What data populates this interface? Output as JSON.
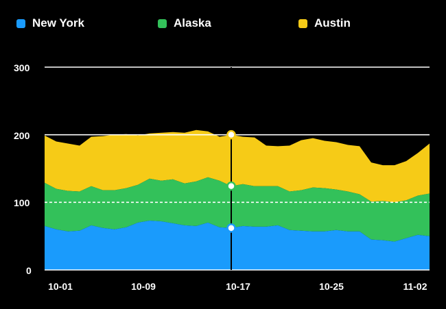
{
  "chart_data": {
    "type": "area",
    "stacked": true,
    "x_tick_labels": [
      "10-01",
      "10-09",
      "10-17",
      "10-25",
      "11-02"
    ],
    "y_tick_labels": [
      "0",
      "100",
      "200",
      "300"
    ],
    "ylim": [
      0,
      300
    ],
    "grid": true,
    "legend_position": "top",
    "x": [
      "10-01",
      "10-02",
      "10-03",
      "10-04",
      "10-05",
      "10-06",
      "10-07",
      "10-08",
      "10-09",
      "10-10",
      "10-11",
      "10-12",
      "10-13",
      "10-14",
      "10-15",
      "10-16",
      "10-17",
      "10-18",
      "10-19",
      "10-20",
      "10-21",
      "10-22",
      "10-23",
      "10-24",
      "10-25",
      "10-26",
      "10-27",
      "10-28",
      "10-29",
      "10-30",
      "10-31",
      "11-01",
      "11-02",
      "11-03"
    ],
    "series": [
      {
        "name": "New York",
        "color": "#1a9bfc",
        "values": [
          65,
          60,
          57,
          58,
          66,
          62,
          60,
          63,
          70,
          73,
          72,
          69,
          66,
          65,
          70,
          63,
          62,
          65,
          64,
          64,
          66,
          59,
          58,
          57,
          57,
          59,
          57,
          57,
          45,
          44,
          42,
          47,
          52,
          50
        ]
      },
      {
        "name": "Alaska",
        "color": "#33c15a",
        "values": [
          64,
          60,
          60,
          58,
          58,
          56,
          58,
          58,
          56,
          62,
          60,
          65,
          62,
          66,
          67,
          69,
          62,
          62,
          60,
          60,
          58,
          57,
          60,
          65,
          64,
          60,
          59,
          55,
          56,
          58,
          58,
          56,
          58,
          63
        ]
      },
      {
        "name": "Austin",
        "color": "#f6cb17",
        "values": [
          70,
          70,
          70,
          68,
          73,
          80,
          82,
          80,
          73,
          67,
          71,
          70,
          75,
          76,
          68,
          65,
          76,
          70,
          72,
          60,
          59,
          68,
          74,
          73,
          70,
          70,
          69,
          71,
          58,
          53,
          55,
          58,
          63,
          74
        ]
      }
    ],
    "hover": {
      "x": "10-17",
      "x_index": 16
    }
  }
}
